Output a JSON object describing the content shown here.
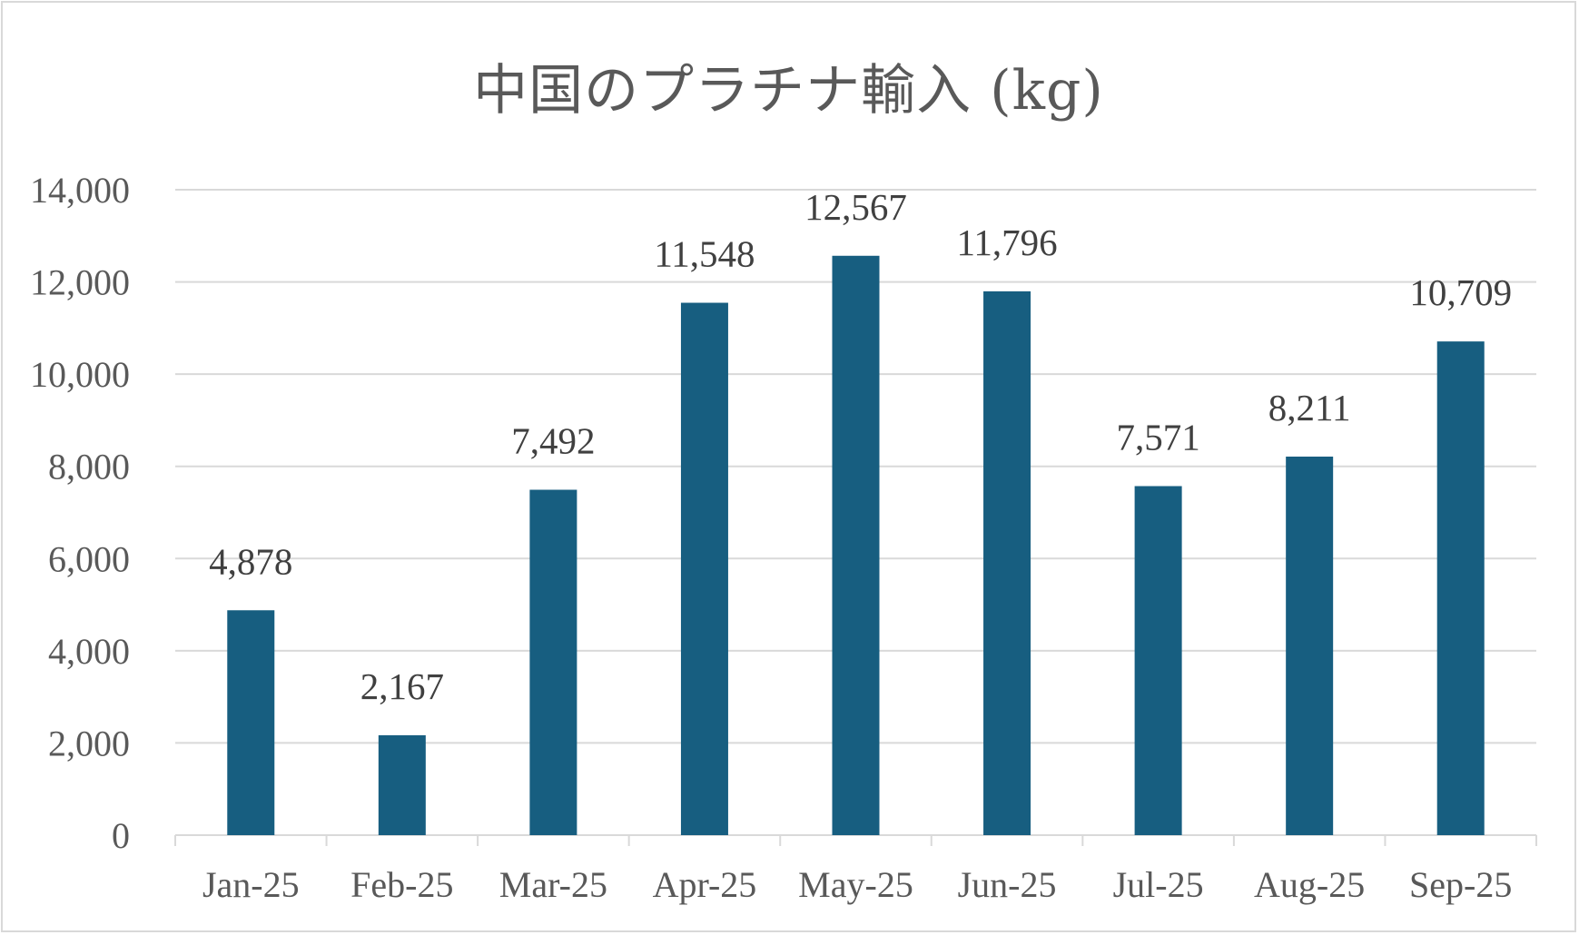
{
  "chart_data": {
    "type": "bar",
    "title": "中国のプラチナ輸入 (kg)",
    "xlabel": "",
    "ylabel": "",
    "categories": [
      "Jan-25",
      "Feb-25",
      "Mar-25",
      "Apr-25",
      "May-25",
      "Jun-25",
      "Jul-25",
      "Aug-25",
      "Sep-25"
    ],
    "values": [
      4878,
      2167,
      7492,
      11548,
      12567,
      11796,
      7571,
      8211,
      10709
    ],
    "data_labels": [
      "4,878",
      "2,167",
      "7,492",
      "11,548",
      "12,567",
      "11,796",
      "7,571",
      "8,211",
      "10,709"
    ],
    "ylim": [
      0,
      14000
    ],
    "yticks": [
      0,
      2000,
      4000,
      6000,
      8000,
      10000,
      12000,
      14000
    ],
    "ytick_labels": [
      "0",
      "2,000",
      "4,000",
      "6,000",
      "8,000",
      "10,000",
      "12,000",
      "14,000"
    ],
    "grid": true,
    "legend": "none",
    "colors": {
      "bar": "#175e80",
      "grid": "#d9d9d9",
      "text": "#595959"
    }
  }
}
